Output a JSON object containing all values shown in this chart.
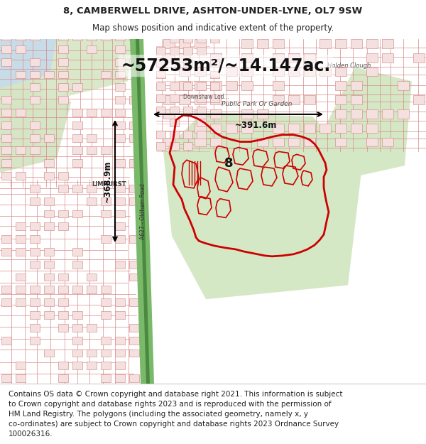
{
  "title_line1": "8, CAMBERWELL DRIVE, ASHTON-UNDER-LYNE, OL7 9SW",
  "title_line2": "Map shows position and indicative extent of the property.",
  "area_text": "~57253m²/~14.147ac.",
  "width_text": "~391.6m",
  "height_text": "~368.9m",
  "label_8": "8",
  "label_park": "Public Park Or Garden",
  "label_limhurst": "LIMHURST",
  "label_holden": "Holden Clough",
  "label_road": "A627 - Oldham Road",
  "label_downshaw": "Downshaw Lod...",
  "footer_lines": [
    "Contains OS data © Crown copyright and database right 2021. This information is subject",
    "to Crown copyright and database rights 2023 and is reproduced with the permission of",
    "HM Land Registry. The polygons (including the associated geometry, namely x, y",
    "co-ordinates) are subject to Crown copyright and database rights 2023 Ordnance Survey",
    "100026316."
  ],
  "text_color": "#222222",
  "footer_fontsize": 7.5,
  "title_fontsize": 9.5,
  "subtitle_fontsize": 8.5
}
